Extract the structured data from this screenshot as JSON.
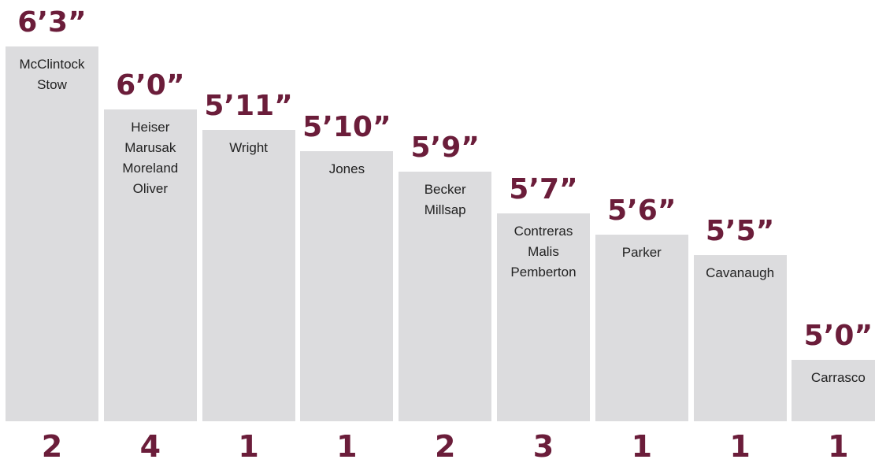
{
  "colors": {
    "bar": "#dcdcde",
    "accent": "#6b1d3a",
    "name_text": "#222222",
    "background": "#ffffff"
  },
  "chart_data": {
    "type": "bar",
    "categories": [
      "6’3”",
      "6’0”",
      "5’11”",
      "5’10”",
      "5’9”",
      "5’7”",
      "5’6”",
      "5’5”",
      "5’0”"
    ],
    "heights_inches": [
      75,
      72,
      71,
      70,
      69,
      67,
      66,
      65,
      60
    ],
    "values": [
      2,
      4,
      1,
      1,
      2,
      3,
      1,
      1,
      1
    ],
    "names": [
      [
        "McClintock",
        "Stow"
      ],
      [
        "Heiser",
        "Marusak",
        "Moreland",
        "Oliver"
      ],
      [
        "Wright"
      ],
      [
        "Jones"
      ],
      [
        "Becker",
        "Millsap"
      ],
      [
        "Contreras",
        "Malis",
        "Pemberton"
      ],
      [
        "Parker"
      ],
      [
        "Cavanaugh"
      ],
      [
        "Carrasco"
      ]
    ],
    "title": "",
    "xlabel": "",
    "ylabel": "",
    "grid": false,
    "legend": "none"
  }
}
